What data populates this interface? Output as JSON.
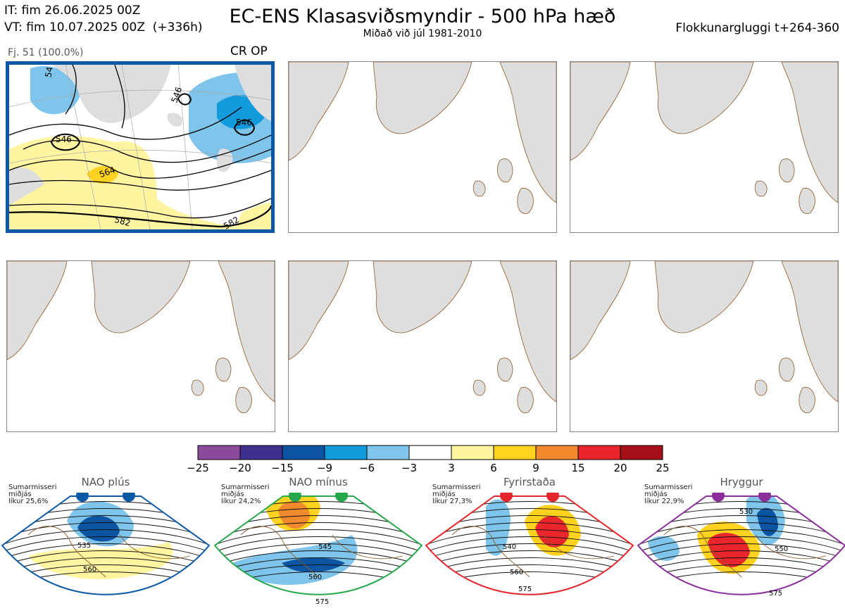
{
  "header": {
    "it": "IT: fim 26.06.2025 00Z",
    "vt": "VT: fim 10.07.2025 00Z  (+336h)",
    "title": "EC-ENS Klasasviðsmyndir - 500 hPa hæð",
    "subtitle": "Miðað við júl 1981-2010",
    "window": "Flokkunargluggi t+264-360"
  },
  "cluster": {
    "label": "Fj. 51 (100.0%)",
    "tag": "CR OP"
  },
  "colors": {
    "panel_border": "#0b58a6",
    "land": "#dedede",
    "coast": "#8b5a2b"
  },
  "chart_data": {
    "type": "heatmap",
    "title": "EC-ENS Klasasviðsmyndir - 500 hPa hæð",
    "main_contour_labels": [
      "546",
      "546",
      "546",
      "564",
      "582",
      "582",
      "54"
    ],
    "colorbar": {
      "ticks": [
        -25,
        -20,
        -15,
        -9,
        -6,
        -3,
        3,
        6,
        9,
        15,
        20,
        25
      ],
      "tick_labels": [
        "−25",
        "−20",
        "−15",
        "−9",
        "−6",
        "−3",
        "3",
        "6",
        "9",
        "15",
        "20",
        "25"
      ],
      "colors": [
        "#8b4a9c",
        "#3f2f8f",
        "#0b55a3",
        "#129bdc",
        "#7fc4ea",
        "#ffffff",
        "#fff4a0",
        "#ffd21f",
        "#f08a2c",
        "#e8262b",
        "#a50f15"
      ]
    },
    "regimes": [
      {
        "name": "NAO plús",
        "season": "Sumarmisseri\nmiðjás\nlíkur 25,6%",
        "color": "#0b58a6",
        "labels": [
          "535",
          "560"
        ]
      },
      {
        "name": "NAO mínus",
        "season": "Sumarmisseri\nmiðjás\nlíkur 24,2%",
        "color": "#24a84b",
        "labels": [
          "545",
          "560",
          "575"
        ]
      },
      {
        "name": "Fyrirstaða",
        "season": "Sumarmisseri\nmiðjás\nlíkur 27,3%",
        "color": "#e3262b",
        "labels": [
          "540",
          "560",
          "575"
        ]
      },
      {
        "name": "Hryggur",
        "season": "Sumarmisseri\nmiðjás\nlíkur 22,9%",
        "color": "#8b2e9c",
        "labels": [
          "530",
          "550",
          "575"
        ]
      }
    ]
  }
}
